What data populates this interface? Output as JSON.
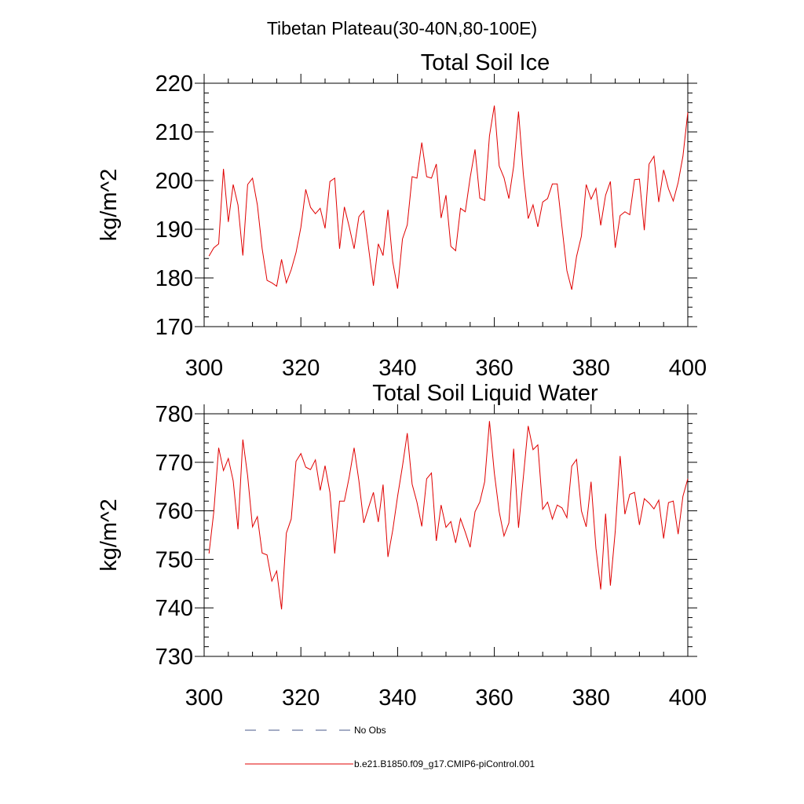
{
  "figure": {
    "suptitle": "Tibetan Plateau(30-40N,80-100E)"
  },
  "legend": {
    "placement": "bottom-center",
    "entries": [
      {
        "label": "No Obs",
        "color": "#4a5a8a",
        "style": "dashed"
      },
      {
        "label": "b.e21.B1850.f09_g17.CMIP6-piControl.001",
        "color": "#e00000",
        "style": "solid"
      }
    ]
  },
  "chart_data": [
    {
      "type": "line",
      "title": "Total Soil Ice",
      "xlabel": "",
      "ylabel": "kg/m^2",
      "xlim": [
        300,
        400
      ],
      "ylim": [
        170,
        220
      ],
      "xticks": [
        300,
        320,
        340,
        360,
        380,
        400
      ],
      "yticks": [
        170,
        180,
        190,
        200,
        210,
        220
      ],
      "grid": false,
      "series": [
        {
          "color": "#e00000",
          "x": [
            301,
            302,
            303,
            304,
            305,
            306,
            307,
            308,
            309,
            310,
            311,
            312,
            313,
            314,
            315,
            316,
            317,
            318,
            319,
            320,
            321,
            322,
            323,
            324,
            325,
            326,
            327,
            328,
            329,
            330,
            331,
            332,
            333,
            334,
            335,
            336,
            337,
            338,
            339,
            340,
            341,
            342,
            343,
            344,
            345,
            346,
            347,
            348,
            349,
            350,
            351,
            352,
            353,
            354,
            355,
            356,
            357,
            358,
            359,
            360,
            361,
            362,
            363,
            364,
            365,
            366,
            367,
            368,
            369,
            370,
            371,
            372,
            373,
            374,
            375,
            376,
            377,
            378,
            379,
            380,
            381,
            382,
            383,
            384,
            385,
            386,
            387,
            388,
            389,
            390,
            391,
            392,
            393,
            394,
            395,
            396,
            397,
            398,
            399,
            400
          ],
          "values": [
            184.5,
            186.2,
            187.0,
            202.4,
            191.5,
            199.2,
            195.0,
            184.6,
            199.2,
            200.5,
            195.0,
            186.0,
            179.5,
            179.0,
            178.3,
            183.8,
            179.0,
            181.7,
            185.2,
            190.4,
            198.2,
            194.5,
            193.2,
            194.3,
            190.2,
            199.8,
            200.5,
            186.0,
            194.6,
            190.5,
            186.0,
            192.6,
            193.8,
            186.2,
            178.4,
            187.0,
            184.6,
            194.0,
            183.3,
            177.8,
            188.0,
            190.9,
            200.8,
            200.5,
            207.8,
            200.8,
            200.5,
            203.4,
            192.3,
            197.0,
            186.5,
            185.6,
            194.3,
            193.6,
            200.6,
            206.4,
            196.4,
            195.9,
            209.2,
            215.4,
            203.0,
            200.6,
            196.3,
            202.9,
            214.2,
            201.2,
            192.2,
            195.0,
            190.5,
            195.6,
            196.3,
            199.3,
            199.3,
            190.4,
            181.5,
            177.6,
            184.4,
            188.6,
            199.2,
            196.2,
            198.4,
            190.8,
            197.0,
            199.8,
            186.2,
            192.8,
            193.6,
            193.0,
            200.2,
            200.3,
            189.8,
            203.4,
            205.0,
            195.6,
            202.2,
            198.3,
            195.8,
            199.6,
            205.0,
            214.0
          ]
        }
      ]
    },
    {
      "type": "line",
      "title": "Total Soil Liquid Water",
      "xlabel": "",
      "ylabel": "kg/m^2",
      "xlim": [
        300,
        400
      ],
      "ylim": [
        730,
        780
      ],
      "xticks": [
        300,
        320,
        340,
        360,
        380,
        400
      ],
      "yticks": [
        730,
        740,
        750,
        760,
        770,
        780
      ],
      "grid": false,
      "series": [
        {
          "color": "#e00000",
          "x": [
            301,
            302,
            303,
            304,
            305,
            306,
            307,
            308,
            309,
            310,
            311,
            312,
            313,
            314,
            315,
            316,
            317,
            318,
            319,
            320,
            321,
            322,
            323,
            324,
            325,
            326,
            327,
            328,
            329,
            330,
            331,
            332,
            333,
            334,
            335,
            336,
            337,
            338,
            339,
            340,
            341,
            342,
            343,
            344,
            345,
            346,
            347,
            348,
            349,
            350,
            351,
            352,
            353,
            354,
            355,
            356,
            357,
            358,
            359,
            360,
            361,
            362,
            363,
            364,
            365,
            366,
            367,
            368,
            369,
            370,
            371,
            372,
            373,
            374,
            375,
            376,
            377,
            378,
            379,
            380,
            381,
            382,
            383,
            384,
            385,
            386,
            387,
            388,
            389,
            390,
            391,
            392,
            393,
            394,
            395,
            396,
            397,
            398,
            399,
            400
          ],
          "values": [
            751.2,
            759.8,
            773.0,
            768.3,
            770.8,
            766.2,
            756.2,
            774.7,
            767.2,
            756.7,
            758.8,
            751.3,
            750.9,
            745.5,
            747.6,
            739.7,
            755.4,
            758.3,
            770.2,
            771.8,
            769.0,
            768.5,
            770.5,
            764.2,
            769.3,
            763.8,
            751.2,
            762.0,
            762.0,
            767.0,
            773.0,
            766.2,
            757.5,
            760.7,
            763.8,
            757.7,
            765.4,
            750.5,
            756.0,
            763.0,
            769.2,
            776.0,
            765.5,
            761.8,
            756.8,
            766.6,
            767.8,
            753.8,
            761.2,
            756.6,
            757.8,
            753.4,
            758.4,
            755.6,
            752.5,
            759.8,
            761.8,
            766.0,
            778.5,
            767.8,
            759.8,
            754.8,
            757.5,
            772.8,
            756.5,
            767.0,
            777.5,
            772.6,
            773.6,
            760.3,
            761.8,
            758.3,
            761.2,
            760.6,
            758.6,
            769.2,
            770.6,
            760.0,
            756.7,
            766.0,
            752.3,
            743.8,
            759.4,
            744.6,
            755.8,
            771.3,
            759.3,
            763.4,
            763.8,
            757.1,
            762.5,
            761.6,
            760.4,
            762.2,
            754.3,
            761.7,
            762.0,
            755.2,
            763.0,
            766.6
          ]
        }
      ]
    }
  ]
}
